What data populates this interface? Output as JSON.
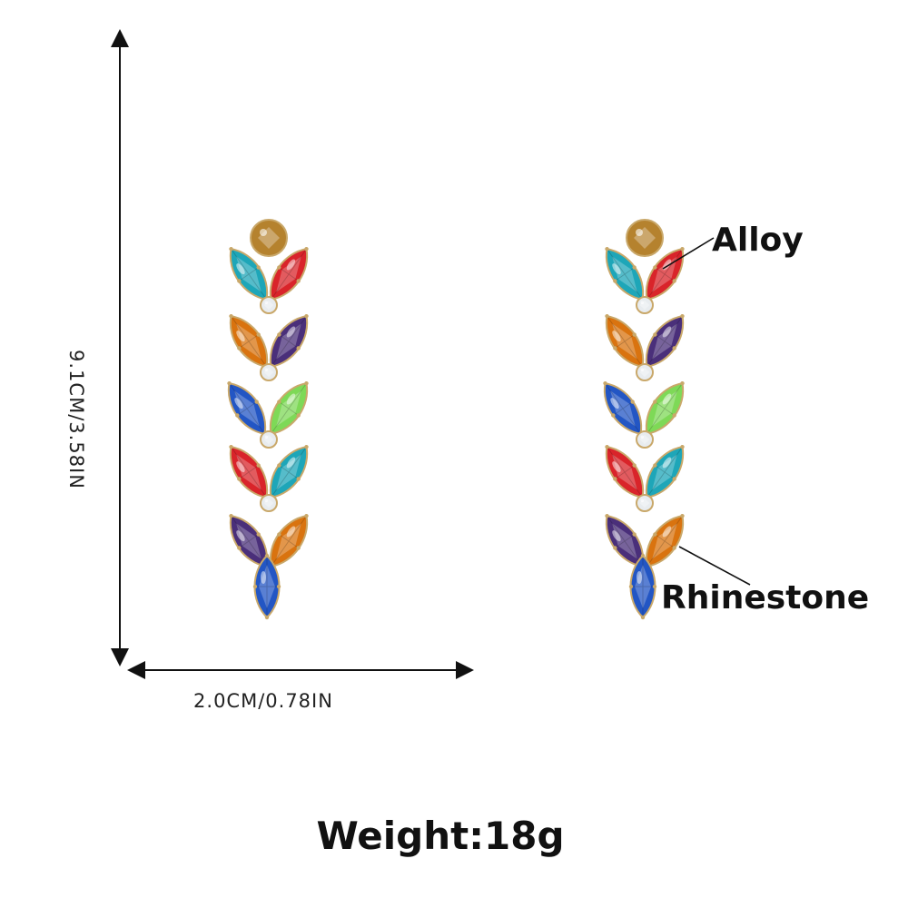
{
  "dimensions": {
    "width_label": "2.0CM/0.78IN",
    "height_label": "9.1CM/3.58IN"
  },
  "callouts": {
    "alloy": "Alloy",
    "rhinestone": "Rhinestone"
  },
  "weight_label": "Weight:18g",
  "stone_colors": {
    "topaz": "#b5822e",
    "aqua": "#1ea6b8",
    "red": "#d9242a",
    "orange": "#d9730f",
    "purple": "#4a2f7a",
    "blue": "#2356c4",
    "green": "#7ed957",
    "clear": "#e8ecef",
    "setting": "#c9a86a"
  }
}
